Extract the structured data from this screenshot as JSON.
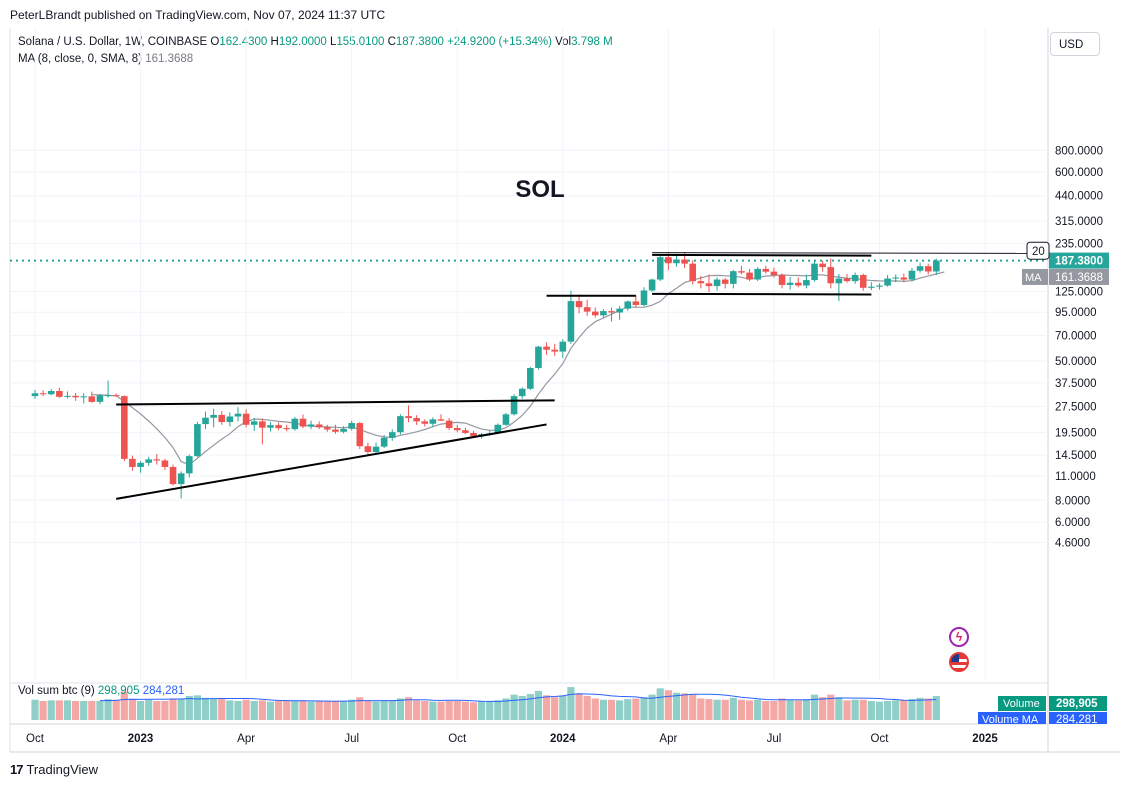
{
  "header": {
    "published_line": "PeterLBrandt published on TradingView.com, Nov 07, 2024 11:37 UTC"
  },
  "legend": {
    "symbol": "Solana / U.S. Dollar, 1W, COINBASE",
    "o_label": "O",
    "o_value": "162.4300",
    "h_label": "H",
    "h_value": "192.0000",
    "l_label": "L",
    "l_value": "155.0100",
    "c_label": "C",
    "c_value": "187.3800",
    "change": "+24.9200 (+15.34%)",
    "vol_label": "Vol",
    "vol_value": "3.798 M",
    "ma_label": "MA (8, close, 0, SMA, 8)",
    "ma_value": "161.3688"
  },
  "volume_legend": {
    "label": "Vol sum btc (9)",
    "value1": "298,905",
    "value2": "284,281"
  },
  "currency_button": "USD",
  "footer": {
    "brand": "TradingView"
  },
  "colors": {
    "up": "#26a69a",
    "down": "#ef5350",
    "ma": "#9598a1",
    "price_line": "#26a69a",
    "vol_up": "#8fcfc8",
    "vol_down": "#f4a8a6",
    "pattern_line": "#000000"
  },
  "icons": {
    "flash": "lightning-icon",
    "flag": "us-flag-icon"
  },
  "chart_data": {
    "type": "candlestick",
    "title": "SOL",
    "scale": "log",
    "y_ticks": [
      "800.0000",
      "600.0000",
      "440.0000",
      "315.0000",
      "235.0000",
      "187.3800",
      "125.0000",
      "95.0000",
      "70.0000",
      "50.0000",
      "37.5000",
      "27.5000",
      "19.5000",
      "14.5000",
      "11.0000",
      "8.0000",
      "6.0000",
      "4.6000"
    ],
    "y_tick_values": [
      800,
      600,
      440,
      315,
      235,
      125,
      95,
      70,
      50,
      37.5,
      27.5,
      19.5,
      14.5,
      11,
      8,
      6,
      4.6
    ],
    "x_ticks": [
      {
        "label": "Oct",
        "week": 0
      },
      {
        "label": "2023",
        "week": 13
      },
      {
        "label": "Apr",
        "week": 26
      },
      {
        "label": "Jul",
        "week": 39
      },
      {
        "label": "Oct",
        "week": 52
      },
      {
        "label": "2024",
        "week": 65
      },
      {
        "label": "Apr",
        "week": 78
      },
      {
        "label": "Jul",
        "week": 91
      },
      {
        "label": "Oct",
        "week": 104
      },
      {
        "label": "2025",
        "week": 117
      }
    ],
    "price_label": "187.3800",
    "price_value": 187.38,
    "ma_label": "MA",
    "ma_label_value": "161.3688",
    "ma_value": 161.3688,
    "truncated_label": "20",
    "volume_badge": {
      "label": "Volume",
      "value": "298,905"
    },
    "volume_ma_badge": {
      "label": "Volume MA",
      "value": "284,281"
    },
    "ohlc": [
      [
        31.5,
        34.2,
        30.4,
        32.7
      ],
      [
        32.7,
        34.0,
        31.5,
        32.3
      ],
      [
        32.3,
        34.6,
        31.8,
        33.7
      ],
      [
        33.7,
        35.2,
        30.8,
        31.2
      ],
      [
        31.2,
        33.5,
        30.6,
        31.6
      ],
      [
        31.6,
        32.8,
        29.6,
        31.0
      ],
      [
        31.0,
        32.7,
        28.6,
        31.4
      ],
      [
        31.4,
        33.4,
        28.9,
        29.2
      ],
      [
        29.2,
        32.4,
        28.3,
        31.8
      ],
      [
        31.8,
        38.7,
        30.9,
        31.9
      ],
      [
        31.9,
        32.6,
        31.3,
        31.5
      ],
      [
        31.5,
        31.8,
        13.4,
        13.8
      ],
      [
        13.8,
        14.4,
        11.8,
        12.4
      ],
      [
        12.4,
        13.4,
        11.5,
        13.1
      ],
      [
        13.1,
        14.2,
        12.6,
        13.7
      ],
      [
        13.7,
        14.7,
        12.8,
        13.5
      ],
      [
        13.5,
        13.8,
        11.9,
        12.4
      ],
      [
        12.4,
        12.8,
        9.7,
        9.9
      ],
      [
        9.9,
        11.7,
        8.2,
        11.4
      ],
      [
        11.4,
        14.6,
        10.8,
        14.3
      ],
      [
        14.3,
        22.5,
        14.1,
        21.8
      ],
      [
        21.8,
        25.7,
        20.4,
        23.7
      ],
      [
        23.7,
        26.7,
        20.9,
        24.6
      ],
      [
        24.6,
        25.9,
        21.6,
        22.4
      ],
      [
        22.4,
        25.4,
        21.1,
        24.1
      ],
      [
        24.1,
        27.2,
        22.6,
        25.0
      ],
      [
        25.0,
        26.5,
        20.8,
        21.6
      ],
      [
        21.6,
        23.6,
        19.9,
        22.6
      ],
      [
        22.6,
        23.4,
        16.7,
        20.8
      ],
      [
        20.8,
        22.4,
        19.8,
        21.5
      ],
      [
        21.5,
        22.3,
        20.1,
        20.7
      ],
      [
        20.7,
        21.6,
        19.8,
        20.4
      ],
      [
        20.4,
        23.9,
        20.0,
        23.4
      ],
      [
        23.4,
        24.7,
        20.7,
        21.1
      ],
      [
        21.1,
        22.8,
        20.4,
        21.7
      ],
      [
        21.7,
        22.6,
        20.4,
        20.9
      ],
      [
        20.9,
        21.6,
        19.7,
        20.3
      ],
      [
        20.3,
        21.6,
        19.2,
        19.7
      ],
      [
        19.7,
        21.2,
        19.3,
        20.5
      ],
      [
        20.5,
        22.8,
        20.0,
        22.1
      ],
      [
        22.1,
        22.4,
        15.7,
        16.3
      ],
      [
        16.3,
        17.1,
        14.3,
        15.1
      ],
      [
        15.1,
        17.1,
        14.6,
        16.2
      ],
      [
        16.2,
        18.9,
        15.9,
        18.2
      ],
      [
        18.2,
        20.3,
        17.5,
        19.6
      ],
      [
        19.6,
        24.8,
        19.0,
        24.2
      ],
      [
        24.2,
        27.9,
        22.3,
        23.6
      ],
      [
        23.6,
        24.5,
        21.6,
        22.6
      ],
      [
        22.6,
        23.2,
        21.1,
        21.9
      ],
      [
        21.9,
        23.8,
        21.0,
        23.2
      ],
      [
        23.2,
        24.8,
        22.7,
        22.8
      ],
      [
        22.8,
        23.6,
        20.2,
        20.7
      ],
      [
        20.7,
        21.6,
        19.6,
        20.1
      ],
      [
        20.1,
        20.8,
        19.1,
        19.4
      ],
      [
        19.4,
        19.9,
        18.3,
        18.6
      ],
      [
        18.6,
        19.4,
        18.0,
        19.1
      ],
      [
        19.1,
        20.1,
        18.7,
        19.3
      ],
      [
        19.3,
        22.0,
        19.1,
        21.6
      ],
      [
        21.6,
        25.3,
        21.3,
        24.8
      ],
      [
        24.8,
        32.3,
        24.4,
        31.5
      ],
      [
        31.5,
        35.4,
        30.4,
        34.7
      ],
      [
        34.7,
        46.3,
        34.1,
        45.6
      ],
      [
        45.6,
        61.0,
        44.7,
        60.4
      ],
      [
        60.4,
        63.9,
        54.2,
        58.0
      ],
      [
        58.0,
        62.7,
        53.6,
        56.6
      ],
      [
        56.6,
        66.6,
        52.1,
        64.5
      ],
      [
        64.5,
        126.0,
        62.7,
        110.0
      ],
      [
        110.0,
        120.0,
        93.6,
        101.5
      ],
      [
        101.5,
        112.0,
        90.6,
        95.8
      ],
      [
        95.8,
        101.0,
        88.6,
        91.2
      ],
      [
        91.2,
        99.0,
        88.2,
        96.4
      ],
      [
        96.4,
        101.0,
        84.0,
        94.6
      ],
      [
        94.6,
        103.0,
        86.0,
        99.6
      ],
      [
        99.6,
        111.0,
        97.0,
        109.5
      ],
      [
        109.5,
        119.0,
        101.0,
        104.5
      ],
      [
        104.5,
        132.0,
        103.0,
        126.5
      ],
      [
        126.5,
        148.0,
        124.0,
        146.0
      ],
      [
        146.0,
        199.0,
        143.0,
        196.0
      ],
      [
        196.0,
        210.0,
        165.0,
        181.0
      ],
      [
        181.0,
        205.0,
        173.0,
        190.0
      ],
      [
        190.0,
        210.0,
        170.0,
        180.0
      ],
      [
        180.0,
        188.0,
        137.0,
        143.0
      ],
      [
        143.0,
        153.0,
        130.0,
        139.0
      ],
      [
        139.0,
        156.0,
        124.0,
        134.0
      ],
      [
        134.0,
        150.0,
        126.0,
        146.0
      ],
      [
        146.0,
        149.0,
        130.0,
        138.0
      ],
      [
        138.0,
        166.0,
        130.0,
        163.0
      ],
      [
        163.0,
        175.0,
        156.0,
        160.0
      ],
      [
        160.0,
        168.0,
        143.0,
        146.0
      ],
      [
        146.0,
        172.0,
        143.0,
        168.0
      ],
      [
        168.0,
        175.0,
        158.0,
        162.0
      ],
      [
        162.0,
        171.0,
        150.0,
        155.0
      ],
      [
        155.0,
        158.0,
        130.0,
        136.0
      ],
      [
        136.0,
        151.0,
        128.0,
        140.0
      ],
      [
        140.0,
        150.0,
        132.0,
        135.0
      ],
      [
        135.0,
        156.0,
        130.0,
        145.0
      ],
      [
        145.0,
        185.0,
        142.0,
        180.0
      ],
      [
        180.0,
        187.0,
        162.0,
        172.0
      ],
      [
        172.0,
        193.0,
        130.0,
        139.0
      ],
      [
        139.0,
        157.0,
        110.0,
        148.0
      ],
      [
        148.0,
        157.0,
        140.0,
        143.0
      ],
      [
        143.0,
        160.0,
        138.0,
        155.0
      ],
      [
        155.0,
        158.0,
        126.0,
        131.0
      ],
      [
        131.0,
        141.0,
        127.0,
        133.0
      ],
      [
        133.0,
        139.0,
        128.0,
        135.0
      ],
      [
        135.0,
        155.0,
        133.0,
        148.0
      ],
      [
        148.0,
        156.0,
        141.0,
        150.0
      ],
      [
        150.0,
        158.0,
        141.0,
        146.0
      ],
      [
        146.0,
        170.0,
        143.0,
        164.0
      ],
      [
        164.0,
        182.0,
        160.0,
        174.0
      ],
      [
        174.0,
        180.0,
        156.0,
        162.4
      ],
      [
        162.4,
        192.0,
        155.0,
        187.4
      ]
    ],
    "ma": [
      null,
      null,
      null,
      null,
      null,
      null,
      null,
      32.1,
      32.0,
      31.9,
      31.6,
      29.4,
      27.1,
      24.9,
      22.7,
      20.5,
      18.3,
      16.0,
      13.3,
      12.8,
      13.9,
      15.2,
      16.5,
      17.9,
      19.2,
      21.1,
      22.5,
      23.3,
      23.2,
      22.9,
      22.6,
      22.4,
      22.1,
      21.6,
      21.2,
      21.1,
      21.0,
      20.9,
      20.8,
      21.0,
      20.3,
      19.5,
      18.8,
      18.4,
      18.3,
      18.8,
      19.2,
      19.7,
      20.3,
      21.1,
      21.8,
      22.1,
      22.3,
      22.1,
      21.2,
      20.4,
      20.1,
      20.1,
      20.8,
      22.4,
      24.4,
      27.6,
      32.3,
      37.3,
      42.1,
      48.3,
      59.1,
      68.0,
      77.1,
      83.9,
      88.0,
      92.6,
      97.2,
      102.0,
      101.5,
      101.3,
      104.2,
      109.6,
      121.2,
      130.2,
      140.3,
      144.9,
      149.2,
      153.6,
      154.2,
      153.5,
      152.8,
      150.5,
      147.0,
      149.9,
      152.9,
      153.8,
      155.5,
      154.3,
      154.1,
      153.2,
      155.0,
      155.5,
      152.2,
      151.0,
      148.2,
      148.2,
      145.6,
      144.2,
      143.4,
      143.2,
      143.4,
      142.5,
      143.8,
      148.8,
      152.8,
      157.0,
      161.4
    ],
    "volume": [
      32,
      30,
      31,
      31,
      31,
      30,
      30,
      30,
      30,
      33,
      32,
      45,
      33,
      30,
      32,
      30,
      30,
      33,
      34,
      38,
      39,
      35,
      33,
      33,
      31,
      30,
      32,
      30,
      31,
      29,
      30,
      30,
      30,
      31,
      29,
      30,
      29,
      29,
      30,
      32,
      36,
      30,
      29,
      30,
      31,
      34,
      36,
      31,
      30,
      29,
      29,
      30,
      30,
      29,
      28,
      30,
      29,
      31,
      34,
      40,
      38,
      41,
      46,
      39,
      36,
      38,
      52,
      42,
      38,
      34,
      32,
      32,
      31,
      33,
      34,
      36,
      40,
      50,
      47,
      43,
      42,
      41,
      34,
      33,
      32,
      32,
      35,
      32,
      31,
      32,
      30,
      30,
      34,
      32,
      31,
      33,
      40,
      36,
      40,
      36,
      31,
      32,
      32,
      30,
      29,
      30,
      31,
      31,
      33,
      35,
      34,
      38
    ],
    "pattern_lines": [
      {
        "name": "triangle-top",
        "p1": {
          "w": 10,
          "price": 28.2
        },
        "p2": {
          "w": 64,
          "price": 29.8
        }
      },
      {
        "name": "triangle-bottom",
        "p1": {
          "w": 10,
          "price": 8.15
        },
        "p2": {
          "w": 63,
          "price": 21.7
        }
      },
      {
        "name": "flag-top",
        "p1": {
          "w": 63,
          "price": 118
        },
        "p2": {
          "w": 74,
          "price": 118
        }
      },
      {
        "name": "range-top",
        "p1": {
          "w": 76,
          "price": 202
        },
        "p2": {
          "w": 103,
          "price": 200
        }
      },
      {
        "name": "range-bottom",
        "p1": {
          "w": 76,
          "price": 121
        },
        "p2": {
          "w": 103,
          "price": 120
        }
      }
    ]
  }
}
